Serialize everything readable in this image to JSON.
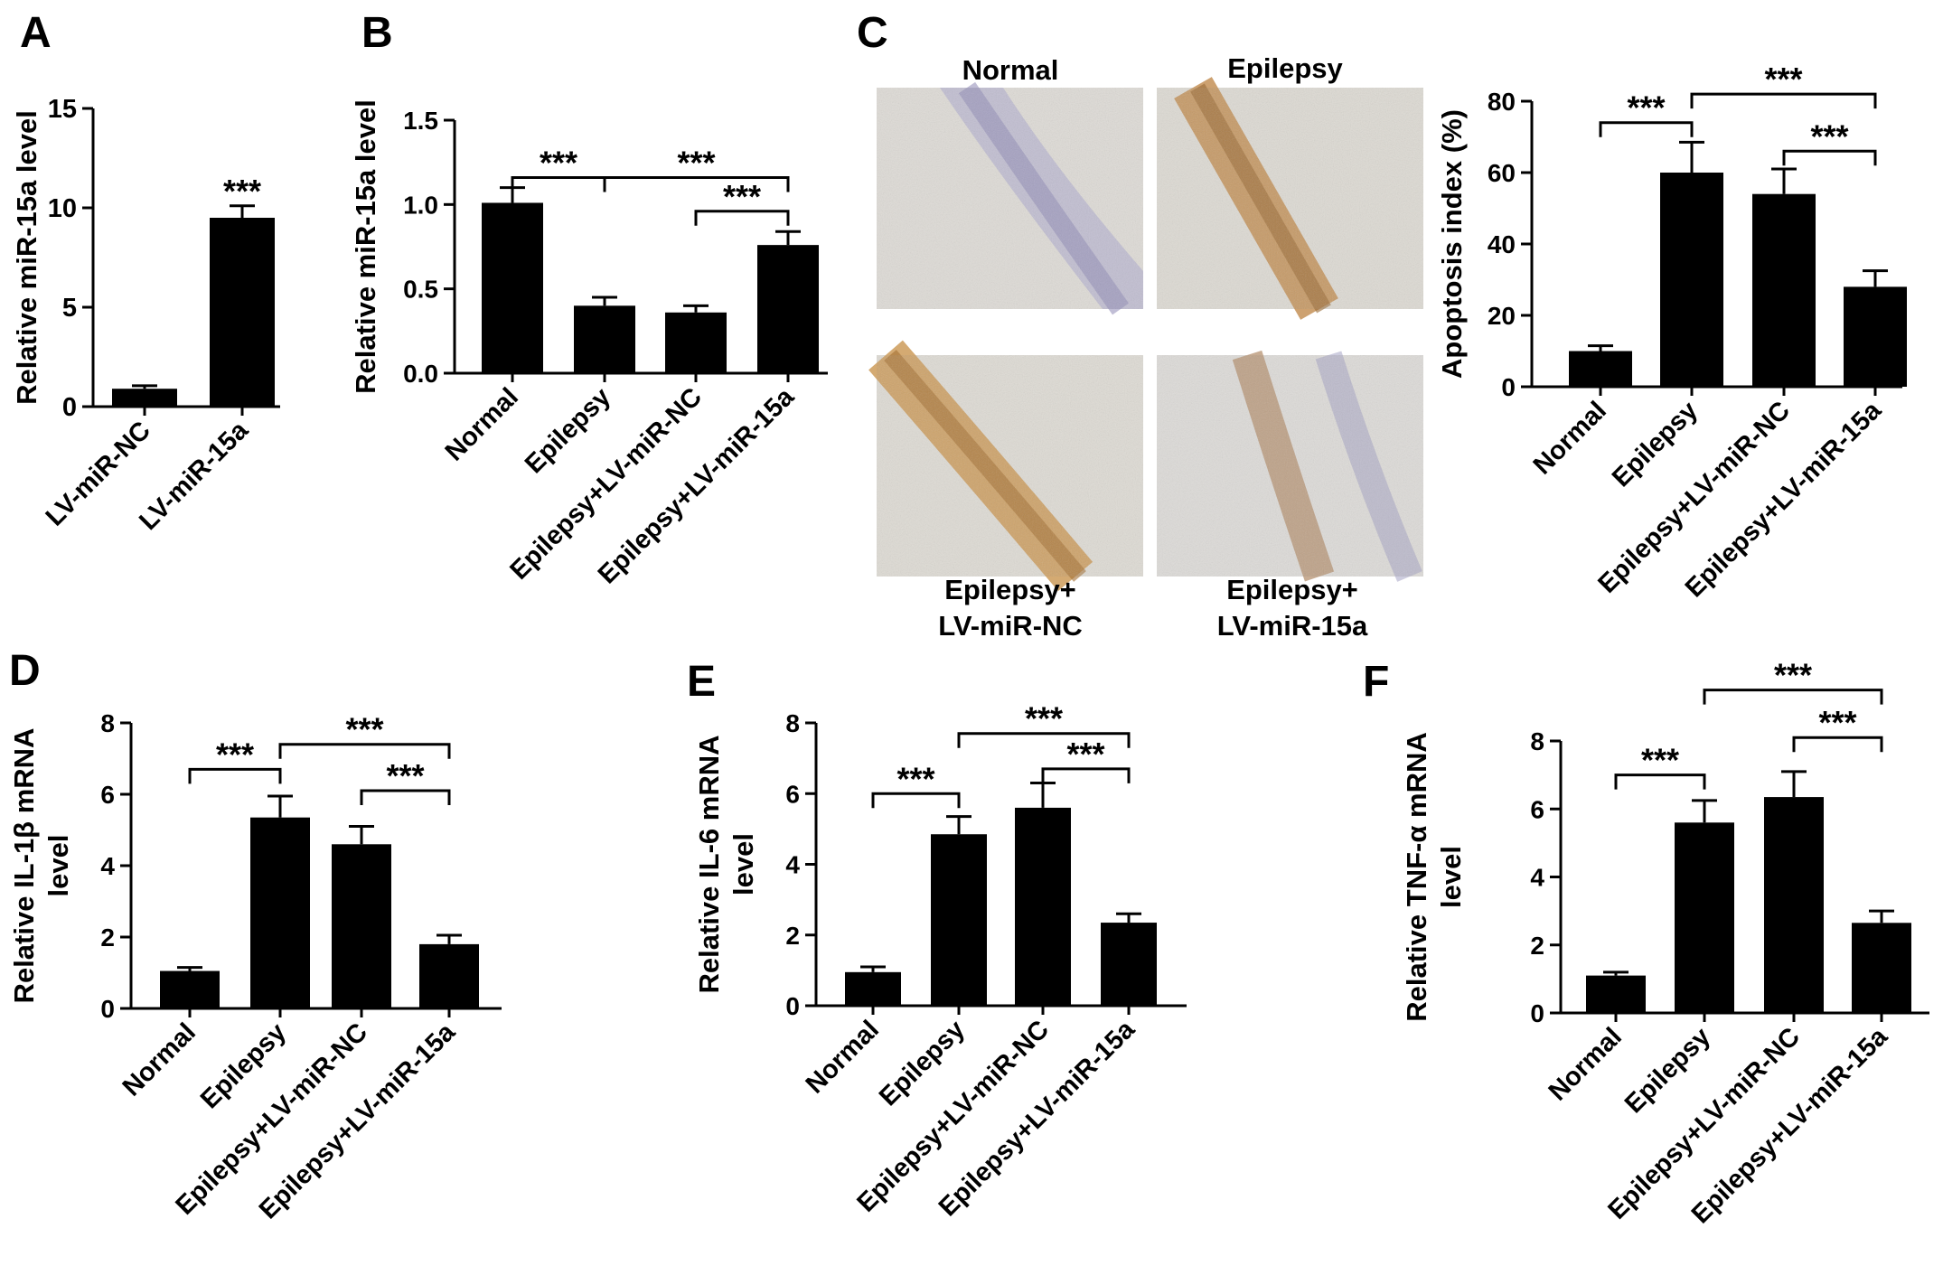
{
  "figure": {
    "micrographs": {
      "labels": [
        "Normal",
        "Epilepsy",
        "Epilepsy+",
        "LV-miR-NC",
        "Epilepsy+",
        "LV-miR-15a"
      ]
    }
  },
  "chart_data": [
    {
      "panel": "A",
      "type": "bar",
      "categories": [
        "LV-miR-NC",
        "LV-miR-15a"
      ],
      "values": [
        0.9,
        9.5
      ],
      "errors": [
        0.15,
        0.6
      ],
      "ylabel": "Relative miR-15a level",
      "ylim": [
        0,
        15
      ],
      "yticks": [
        0,
        5,
        10,
        15
      ],
      "ytick_labels": [
        "0",
        "5",
        "10",
        "15"
      ],
      "annotations": [
        {
          "type": "star",
          "bar": 1,
          "label": "***"
        }
      ]
    },
    {
      "panel": "B",
      "type": "bar",
      "categories": [
        "Normal",
        "Epilepsy",
        "Epilepsy+LV-miR-NC",
        "Epilepsy+LV-miR-15a"
      ],
      "values": [
        1.01,
        0.4,
        0.36,
        0.76
      ],
      "errors": [
        0.09,
        0.05,
        0.04,
        0.08
      ],
      "ylabel": "Relative miR-15a level",
      "ylim": [
        0,
        1.5
      ],
      "yticks": [
        0,
        0.5,
        1.0,
        1.5
      ],
      "ytick_labels": [
        "0.0",
        "0.5",
        "1.0",
        "1.5"
      ],
      "annotations": [
        {
          "type": "bracket",
          "from": 0,
          "to": 1,
          "y": 1.16,
          "label": "***"
        },
        {
          "type": "bracket",
          "from": 1,
          "to": 3,
          "y": 1.16,
          "label": "***"
        },
        {
          "type": "bracket",
          "from": 2,
          "to": 3,
          "y": 0.96,
          "label": "***"
        }
      ]
    },
    {
      "panel": "C",
      "type": "bar",
      "categories": [
        "Normal",
        "Epilepsy",
        "Epilepsy+LV-miR-NC",
        "Epilepsy+LV-miR-15a"
      ],
      "values": [
        10,
        60,
        54,
        28
      ],
      "errors": [
        1.5,
        8.5,
        7.0,
        4.5
      ],
      "ylabel": "Apoptosis index (%)",
      "ylim": [
        0,
        80
      ],
      "yticks": [
        0,
        20,
        40,
        60,
        80
      ],
      "ytick_labels": [
        "0",
        "20",
        "40",
        "60",
        "80"
      ],
      "annotations": [
        {
          "type": "bracket",
          "from": 0,
          "to": 1,
          "y": 74,
          "label": "***"
        },
        {
          "type": "bracket",
          "from": 1,
          "to": 3,
          "y": 82,
          "label": "***"
        },
        {
          "type": "bracket",
          "from": 2,
          "to": 3,
          "y": 66,
          "label": "***"
        }
      ]
    },
    {
      "panel": "D",
      "type": "bar",
      "categories": [
        "Normal",
        "Epilepsy",
        "Epilepsy+LV-miR-NC",
        "Epilepsy+LV-miR-15a"
      ],
      "values": [
        1.05,
        5.35,
        4.6,
        1.8
      ],
      "errors": [
        0.1,
        0.6,
        0.5,
        0.25
      ],
      "ylabel_lines": [
        "Relative IL-1β mRNA",
        "level"
      ],
      "ylim": [
        0,
        8
      ],
      "yticks": [
        0,
        2,
        4,
        6,
        8
      ],
      "ytick_labels": [
        "0",
        "2",
        "4",
        "6",
        "8"
      ],
      "annotations": [
        {
          "type": "bracket",
          "from": 0,
          "to": 1,
          "y": 6.7,
          "label": "***"
        },
        {
          "type": "bracket",
          "from": 1,
          "to": 3,
          "y": 7.4,
          "label": "***"
        },
        {
          "type": "bracket",
          "from": 2,
          "to": 3,
          "y": 6.1,
          "label": "***"
        }
      ]
    },
    {
      "panel": "E",
      "type": "bar",
      "categories": [
        "Normal",
        "Epilepsy",
        "Epilepsy+LV-miR-NC",
        "Epilepsy+LV-miR-15a"
      ],
      "values": [
        0.95,
        4.85,
        5.6,
        2.35
      ],
      "errors": [
        0.15,
        0.5,
        0.7,
        0.25
      ],
      "ylabel_lines": [
        "Relative IL-6 mRNA",
        "level"
      ],
      "ylim": [
        0,
        8
      ],
      "yticks": [
        0,
        2,
        4,
        6,
        8
      ],
      "ytick_labels": [
        "0",
        "2",
        "4",
        "6",
        "8"
      ],
      "annotations": [
        {
          "type": "bracket",
          "from": 0,
          "to": 1,
          "y": 6.0,
          "label": "***"
        },
        {
          "type": "bracket",
          "from": 1,
          "to": 3,
          "y": 7.7,
          "label": "***"
        },
        {
          "type": "bracket",
          "from": 2,
          "to": 3,
          "y": 6.7,
          "label": "***"
        }
      ]
    },
    {
      "panel": "F",
      "type": "bar",
      "categories": [
        "Normal",
        "Epilepsy",
        "Epilepsy+LV-miR-NC",
        "Epilepsy+LV-miR-15a"
      ],
      "values": [
        1.1,
        5.6,
        6.35,
        2.65
      ],
      "errors": [
        0.1,
        0.65,
        0.75,
        0.35
      ],
      "ylabel_lines": [
        "Relative TNF-α mRNA",
        "level"
      ],
      "ylim": [
        0,
        8
      ],
      "yticks": [
        0,
        2,
        4,
        6,
        8
      ],
      "ytick_labels": [
        "0",
        "2",
        "4",
        "6",
        "8"
      ],
      "annotations": [
        {
          "type": "bracket",
          "from": 0,
          "to": 1,
          "y": 7.0,
          "label": "***"
        },
        {
          "type": "bracket",
          "from": 1,
          "to": 3,
          "y": 9.5,
          "label": "***"
        },
        {
          "type": "bracket",
          "from": 2,
          "to": 3,
          "y": 8.1,
          "label": "***"
        }
      ]
    }
  ]
}
